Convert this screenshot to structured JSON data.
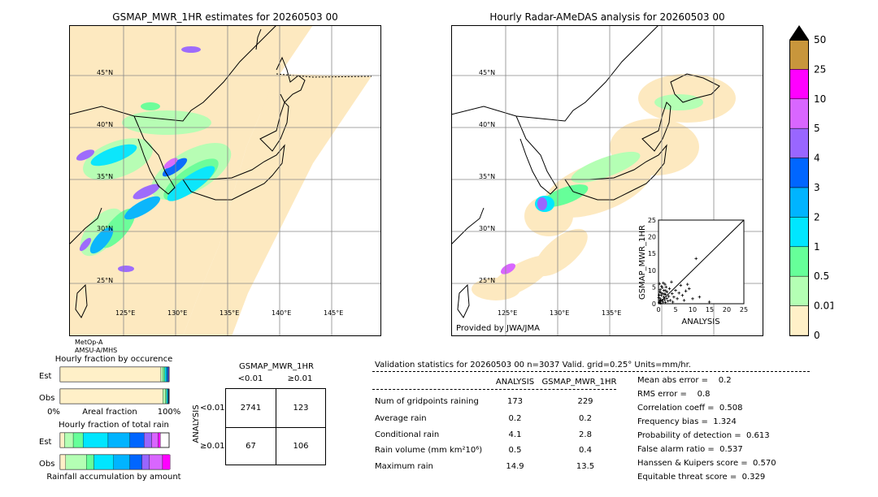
{
  "left_map": {
    "title": "GSMAP_MWR_1HR estimates for 20260503 00",
    "lat_labels": [
      "45°N",
      "40°N",
      "35°N",
      "30°N",
      "25°N"
    ],
    "lon_labels": [
      "125°E",
      "130°E",
      "135°E",
      "140°E",
      "145°E"
    ],
    "sensor_lines": [
      "MetOp-A",
      "AMSU-A/MHS"
    ]
  },
  "right_map": {
    "title": "Hourly Radar-AMeDAS analysis for 20260503 00",
    "lat_labels": [
      "45°N",
      "40°N",
      "35°N",
      "30°N",
      "25°N"
    ],
    "lon_labels": [
      "125°E",
      "130°E",
      "135°E"
    ],
    "provider": "Provided by JWA/JMA"
  },
  "colorbar": {
    "labels": [
      "50",
      "25",
      "10",
      "5",
      "4",
      "3",
      "2",
      "1",
      "0.5",
      "0.01",
      "0"
    ],
    "colors": [
      "#c8963c",
      "#ff00ff",
      "#d966ff",
      "#9966ff",
      "#0066ff",
      "#00b4ff",
      "#00e6ff",
      "#66ff99",
      "#b4ffb4",
      "#fff0c8"
    ]
  },
  "chart_data": [
    {
      "type": "scatter",
      "xlabel": "ANALYSIS",
      "ylabel": "GSMAP_MWR_1HR",
      "xlim": [
        0,
        25
      ],
      "ylim": [
        0,
        25
      ],
      "x_ticks": [
        "0",
        "5",
        "10",
        "15",
        "20",
        "25"
      ],
      "y_ticks": [
        "0",
        "5",
        "10",
        "15",
        "20",
        "25"
      ],
      "points": [
        [
          0.2,
          0.3
        ],
        [
          0.4,
          0.8
        ],
        [
          0.5,
          1.5
        ],
        [
          0.6,
          0.2
        ],
        [
          0.8,
          2.5
        ],
        [
          1,
          1
        ],
        [
          1.2,
          3
        ],
        [
          1.3,
          0.5
        ],
        [
          1.5,
          2
        ],
        [
          1.6,
          4
        ],
        [
          1.8,
          1.2
        ],
        [
          2,
          0.4
        ],
        [
          2,
          2.8
        ],
        [
          2.2,
          5
        ],
        [
          2.4,
          1.6
        ],
        [
          2.5,
          3.5
        ],
        [
          2.8,
          0.8
        ],
        [
          3,
          2.2
        ],
        [
          3.2,
          4.5
        ],
        [
          3.5,
          1
        ],
        [
          3.8,
          6.5
        ],
        [
          4,
          3
        ],
        [
          4.2,
          0.5
        ],
        [
          4.5,
          2
        ],
        [
          5,
          4
        ],
        [
          5.5,
          1.5
        ],
        [
          6,
          3.2
        ],
        [
          6.5,
          5.5
        ],
        [
          7,
          2.5
        ],
        [
          7.5,
          1
        ],
        [
          8,
          3.8
        ],
        [
          8.5,
          5.8
        ],
        [
          9,
          4.5
        ],
        [
          10,
          1.5
        ],
        [
          11,
          13.5
        ],
        [
          12,
          2
        ],
        [
          14.9,
          0.5
        ],
        [
          0.3,
          6
        ],
        [
          0.5,
          4.2
        ],
        [
          0.7,
          3.3
        ],
        [
          0.9,
          5.2
        ],
        [
          1.1,
          4.8
        ],
        [
          1.4,
          6.2
        ],
        [
          1.7,
          2.9
        ],
        [
          1.9,
          5.8
        ],
        [
          2.1,
          3.9
        ],
        [
          0.1,
          1.8
        ],
        [
          0.2,
          2.6
        ],
        [
          0.4,
          3.6
        ],
        [
          0.6,
          1.1
        ]
      ]
    },
    {
      "type": "bar",
      "title": "Hourly fraction by occurence",
      "xlabel": "Areal fraction",
      "x_ticks": [
        "0%",
        "100%"
      ],
      "categories": [
        "Est",
        "Obs"
      ],
      "series": [
        {
          "values": [
            0.925,
            0.943
          ]
        },
        {
          "values": [
            0.02,
            0.025
          ]
        },
        {
          "values": [
            0.015,
            0.01
          ]
        },
        {
          "values": [
            0.015,
            0.01
          ]
        },
        {
          "values": [
            0.01,
            0.006
          ]
        },
        {
          "values": [
            0.008,
            0.003
          ]
        },
        {
          "values": [
            0.007,
            0.003
          ]
        }
      ]
    },
    {
      "type": "bar",
      "title": "Hourly fraction of total rain",
      "xlabel": "Rainfall accumulation by amount",
      "categories": [
        "Est",
        "Obs"
      ],
      "series": [
        {
          "values": [
            0.04,
            0.05
          ]
        },
        {
          "values": [
            0.08,
            0.19
          ]
        },
        {
          "values": [
            0.09,
            0.07
          ]
        },
        {
          "values": [
            0.23,
            0.18
          ]
        },
        {
          "values": [
            0.2,
            0.15
          ]
        },
        {
          "values": [
            0.13,
            0.11
          ]
        },
        {
          "values": [
            0.07,
            0.07
          ]
        },
        {
          "values": [
            0.06,
            0.12
          ]
        },
        {
          "values": [
            0.02,
            0.07
          ]
        }
      ]
    }
  ],
  "contingency": {
    "title": "GSMAP_MWR_1HR",
    "col_headers": [
      "<0.01",
      "≥0.01"
    ],
    "row_headers": [
      "<0.01",
      "≥0.01"
    ],
    "side_label": "ANALYSIS",
    "cells": [
      [
        "2741",
        "123"
      ],
      [
        "67",
        "106"
      ]
    ]
  },
  "validation": {
    "header": "Validation statistics for 20260503 00  n=3037 Valid. grid=0.25° Units=mm/hr.",
    "col_analysis": "ANALYSIS",
    "col_gsmap": "GSMAP_MWR_1HR",
    "rows": [
      {
        "label": "Num of gridpoints raining",
        "analysis": "173",
        "gsmap": "229"
      },
      {
        "label": "Average rain",
        "analysis": "0.2",
        "gsmap": "0.2"
      },
      {
        "label": "Conditional rain",
        "analysis": "4.1",
        "gsmap": "2.8"
      },
      {
        "label": "Rain volume (mm km²10⁶)",
        "analysis": "0.5",
        "gsmap": "0.4"
      },
      {
        "label": "Maximum rain",
        "analysis": "14.9",
        "gsmap": "13.5"
      }
    ],
    "scores": [
      "Mean abs error =    0.2",
      "RMS error =    0.8",
      "Correlation coeff =  0.508",
      "Frequency bias =  1.324",
      "Probability of detection =  0.613",
      "False alarm ratio =  0.537",
      "Hanssen & Kuipers score =  0.570",
      "Equitable threat score =  0.329"
    ]
  }
}
